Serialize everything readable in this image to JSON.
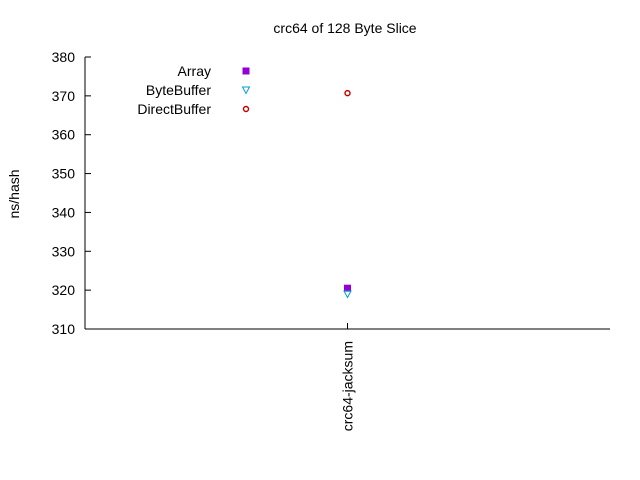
{
  "chart_data": {
    "type": "scatter",
    "title": "crc64 of 128 Byte Slice",
    "ylabel": "ns/hash",
    "xlabel": "",
    "categories": [
      "crc64-jacksum"
    ],
    "ylim": [
      310,
      380
    ],
    "yticks": [
      310,
      320,
      330,
      340,
      350,
      360,
      370,
      380
    ],
    "grid": false,
    "legend_position": "top-left",
    "series": [
      {
        "name": "Array",
        "marker": "filled-square",
        "color": "#9400d3",
        "values": [
          320.5
        ]
      },
      {
        "name": "ByteBuffer",
        "marker": "open-triangle-down",
        "color": "#009ed8",
        "values": [
          319.0
        ]
      },
      {
        "name": "DirectBuffer",
        "marker": "open-circle",
        "color": "#c00000",
        "values": [
          370.7
        ]
      }
    ]
  }
}
